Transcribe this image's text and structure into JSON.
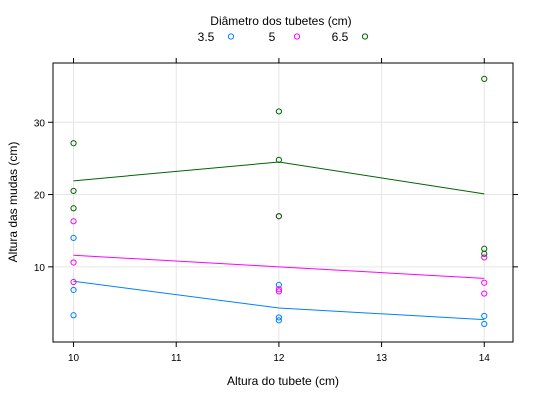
{
  "chart_data": {
    "type": "scatter",
    "title": "",
    "xlabel": "Altura do tubete (cm)",
    "ylabel": "Altura das mudas (cm)",
    "xlim": [
      9.8,
      14.28
    ],
    "ylim": [
      -0.4,
      38.2
    ],
    "xticks": [
      10,
      11,
      12,
      13,
      14
    ],
    "yticks": [
      10,
      20,
      30
    ],
    "grid": true,
    "legend": {
      "title": "Diâmetro dos tubetes (cm)",
      "placement": "top-center"
    },
    "series": [
      {
        "name": "3.5",
        "color": "#0080ff",
        "points": [
          {
            "x": 10,
            "y": 14.0
          },
          {
            "x": 10,
            "y": 6.8
          },
          {
            "x": 10,
            "y": 3.3
          },
          {
            "x": 12,
            "y": 7.5
          },
          {
            "x": 12,
            "y": 3.0
          },
          {
            "x": 12,
            "y": 2.6
          },
          {
            "x": 14,
            "y": 3.2
          },
          {
            "x": 14,
            "y": 2.1
          }
        ],
        "line": [
          {
            "x": 10,
            "y": 8.0
          },
          {
            "x": 12,
            "y": 4.3
          },
          {
            "x": 14,
            "y": 2.7
          }
        ]
      },
      {
        "name": "5",
        "color": "#ff00ff",
        "points": [
          {
            "x": 10,
            "y": 16.3
          },
          {
            "x": 10,
            "y": 10.6
          },
          {
            "x": 10,
            "y": 7.9
          },
          {
            "x": 12,
            "y": 17.0
          },
          {
            "x": 12,
            "y": 6.9
          },
          {
            "x": 12,
            "y": 6.6
          },
          {
            "x": 14,
            "y": 11.3
          },
          {
            "x": 14,
            "y": 7.8
          },
          {
            "x": 14,
            "y": 6.3
          }
        ],
        "line": [
          {
            "x": 10,
            "y": 11.6
          },
          {
            "x": 12,
            "y": 10.0
          },
          {
            "x": 14,
            "y": 8.4
          }
        ]
      },
      {
        "name": "6.5",
        "color": "#006400",
        "points": [
          {
            "x": 10,
            "y": 27.1
          },
          {
            "x": 10,
            "y": 20.5
          },
          {
            "x": 10,
            "y": 18.1
          },
          {
            "x": 12,
            "y": 31.5
          },
          {
            "x": 12,
            "y": 24.8
          },
          {
            "x": 12,
            "y": 17.0
          },
          {
            "x": 14,
            "y": 36.0
          },
          {
            "x": 14,
            "y": 12.5
          },
          {
            "x": 14,
            "y": 11.8
          }
        ],
        "line": [
          {
            "x": 10,
            "y": 21.9
          },
          {
            "x": 12,
            "y": 24.5
          },
          {
            "x": 14,
            "y": 20.1
          }
        ]
      }
    ]
  }
}
